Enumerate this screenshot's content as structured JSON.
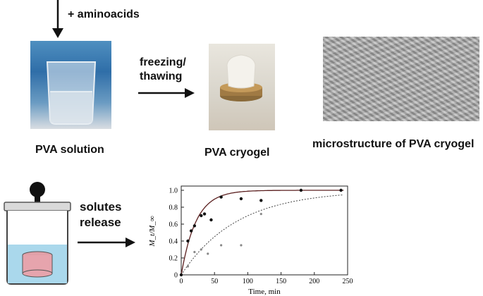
{
  "step_labels": {
    "add": "+ aminoacids",
    "process_line1": "freezing/",
    "process_line2": "thawing",
    "release_line1": "solutes",
    "release_line2": "release"
  },
  "captions": {
    "solution": "PVA solution",
    "cryogel": "PVA cryogel",
    "microstructure": "microstructure of PVA cryogel"
  },
  "chart_data": {
    "type": "scatter",
    "xlabel": "Time, min",
    "ylabel": "M_t/M_∞",
    "xlim": [
      0,
      250
    ],
    "ylim": [
      0,
      1.05
    ],
    "x_ticks": [
      "0",
      "50",
      "100",
      "150",
      "200",
      "250"
    ],
    "y_ticks": [
      "0",
      "0.2",
      "0.4",
      "0.6",
      "0.8",
      "1.0"
    ],
    "series": [
      {
        "style": "filled-dots-solid-fit",
        "points": [
          [
            0,
            0.0
          ],
          [
            10,
            0.4
          ],
          [
            15,
            0.52
          ],
          [
            20,
            0.58
          ],
          [
            30,
            0.7
          ],
          [
            35,
            0.72
          ],
          [
            45,
            0.65
          ],
          [
            60,
            0.92
          ],
          [
            90,
            0.9
          ],
          [
            120,
            0.88
          ],
          [
            180,
            1.0
          ],
          [
            240,
            1.0
          ]
        ],
        "fit_rate": 0.045
      },
      {
        "style": "open-dots-dashed-fit",
        "points": [
          [
            10,
            0.1
          ],
          [
            20,
            0.27
          ],
          [
            30,
            0.3
          ],
          [
            40,
            0.25
          ],
          [
            60,
            0.35
          ],
          [
            90,
            0.35
          ],
          [
            120,
            0.72
          ]
        ],
        "fit_rate": 0.012
      }
    ]
  }
}
